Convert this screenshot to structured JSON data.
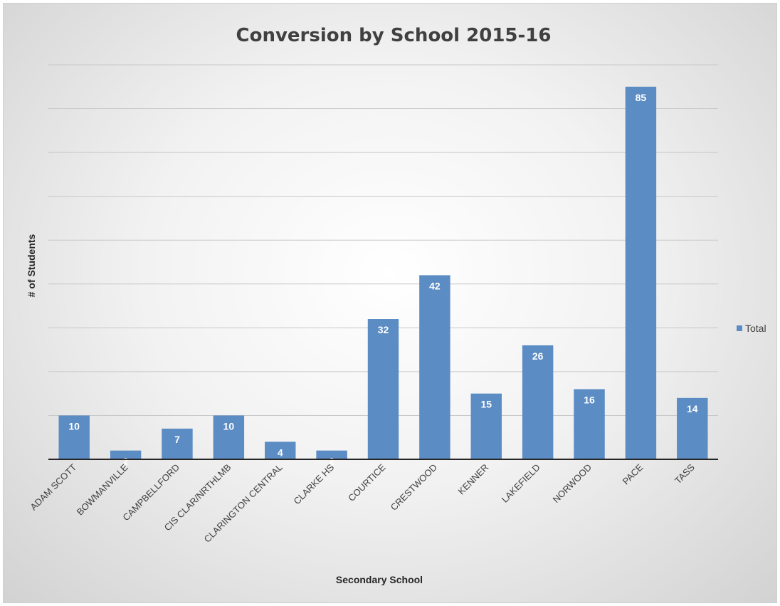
{
  "chart_data": {
    "type": "bar",
    "title": "Conversion by School 2015-16",
    "xlabel": "Secondary School",
    "ylabel": "# of Students",
    "categories": [
      "ADAM SCOTT",
      "BOWMANVILLE",
      "CAMPBELLFORD",
      "CIS CLAR/NRTHLMB",
      "CLARINGTON CENTRAL",
      "CLARKE HS",
      "COURTICE",
      "CRESTWOOD",
      "KENNER",
      "LAKEFIELD",
      "NORWOOD",
      "PACE",
      "TASS"
    ],
    "series": [
      {
        "name": "Total",
        "values": [
          10,
          2,
          7,
          10,
          4,
          2,
          32,
          42,
          15,
          26,
          16,
          85,
          14
        ],
        "color": "#5b8cc4"
      }
    ],
    "ylim": [
      0,
      90
    ],
    "y_tick_step": 10,
    "y_tick_labels_visible": false,
    "grid": true,
    "legend": "right",
    "data_labels": true
  }
}
